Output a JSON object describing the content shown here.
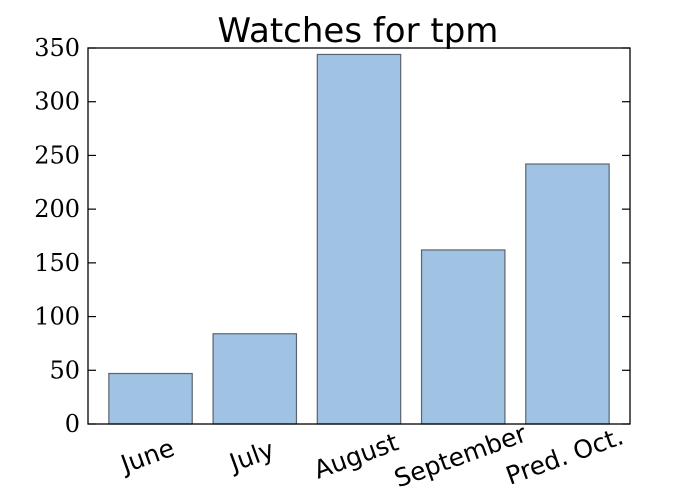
{
  "chart_data": {
    "type": "bar",
    "title": "Watches for tpm",
    "xlabel": "",
    "ylabel": "",
    "categories": [
      "June",
      "July",
      "August",
      "September",
      "Pred. Oct."
    ],
    "values": [
      47,
      84,
      344,
      162,
      242
    ],
    "ylim": [
      0,
      350
    ],
    "yticks": [
      0,
      50,
      100,
      150,
      200,
      250,
      300,
      350
    ],
    "ytick_labels": [
      "0",
      "50",
      "100",
      "150",
      "200",
      "250",
      "300",
      "350"
    ],
    "bar_color": "#a0c2e3",
    "bar_edge_color": "#5a6470",
    "grid": false,
    "legend": "none",
    "xtick_rotation": "rotated ~20 degrees"
  }
}
